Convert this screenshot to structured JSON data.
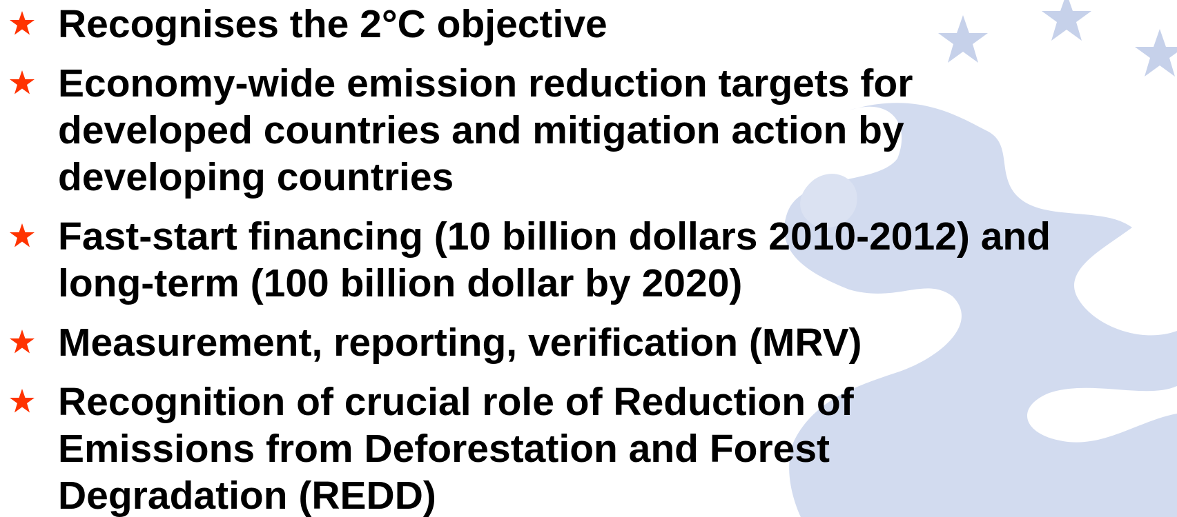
{
  "items": [
    {
      "lines": [
        "Recognises the 2°C objective"
      ]
    },
    {
      "lines": [
        "Economy-wide emission reduction targets for",
        "developed countries and mitigation action by",
        "developing countries"
      ]
    },
    {
      "lines": [
        "Fast-start financing (10 billion dollars 2010-2012) and",
        "long-term (100 billion dollar by 2020)"
      ]
    },
    {
      "lines": [
        "Measurement, reporting, verification (MRV)"
      ]
    },
    {
      "lines": [
        "Recognition of crucial role of Reduction of",
        "Emissions from Deforestation and Forest",
        "Degradation (REDD)"
      ]
    }
  ]
}
